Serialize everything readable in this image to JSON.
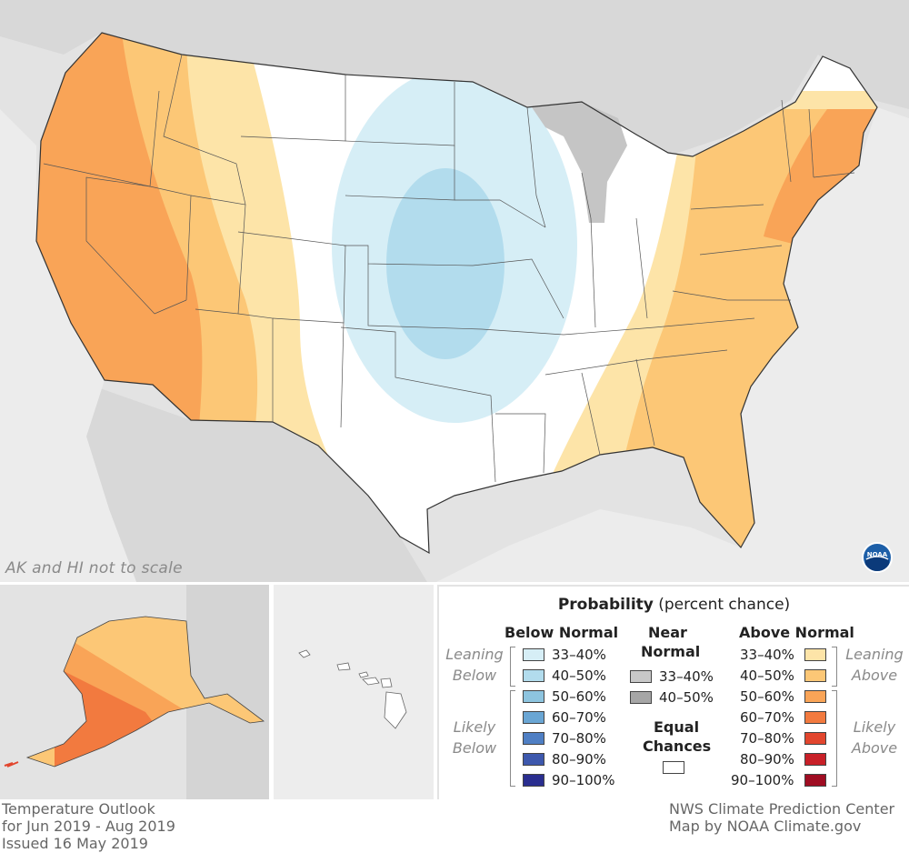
{
  "map": {
    "scale_note": "AK and HI not to scale",
    "logo_text": "NOAA"
  },
  "legend": {
    "title_bold": "Probability",
    "title_rest": " (percent chance)",
    "below_header": "Below Normal",
    "near_header_1": "Near",
    "near_header_2": "Normal",
    "above_header": "Above Normal",
    "below": [
      {
        "label": "33–40%",
        "color": "#d6eef6"
      },
      {
        "label": "40–50%",
        "color": "#b2dced"
      },
      {
        "label": "50–60%",
        "color": "#8dc4df"
      },
      {
        "label": "60–70%",
        "color": "#6aa6d4"
      },
      {
        "label": "70–80%",
        "color": "#4f7fc4"
      },
      {
        "label": "80–90%",
        "color": "#3d58ad"
      },
      {
        "label": "90–100%",
        "color": "#2a2e8f"
      }
    ],
    "near": [
      {
        "label": "33–40%",
        "color": "#c8c8c8"
      },
      {
        "label": "40–50%",
        "color": "#a6a6a6"
      }
    ],
    "equal_1": "Equal",
    "equal_2": "Chances",
    "equal_color": "#ffffff",
    "above": [
      {
        "label": "33–40%",
        "color": "#fde4a8"
      },
      {
        "label": "40–50%",
        "color": "#fcc776"
      },
      {
        "label": "50–60%",
        "color": "#f9a457"
      },
      {
        "label": "60–70%",
        "color": "#f27a3f"
      },
      {
        "label": "70–80%",
        "color": "#e2462e"
      },
      {
        "label": "80–90%",
        "color": "#c82028"
      },
      {
        "label": "90–100%",
        "color": "#9f0d22"
      }
    ],
    "leaning_1": "Leaning",
    "leaning_below_2": "Below",
    "leaning_above_2": "Above",
    "likely_1": "Likely",
    "likely_below_2": "Below",
    "likely_above_2": "Above"
  },
  "footer": {
    "left": [
      "Temperature Outlook",
      "for Jun 2019 - Aug 2019",
      "Issued 16 May 2019"
    ],
    "right": [
      "NWS Climate Prediction Center",
      "Map by NOAA Climate.gov"
    ]
  }
}
